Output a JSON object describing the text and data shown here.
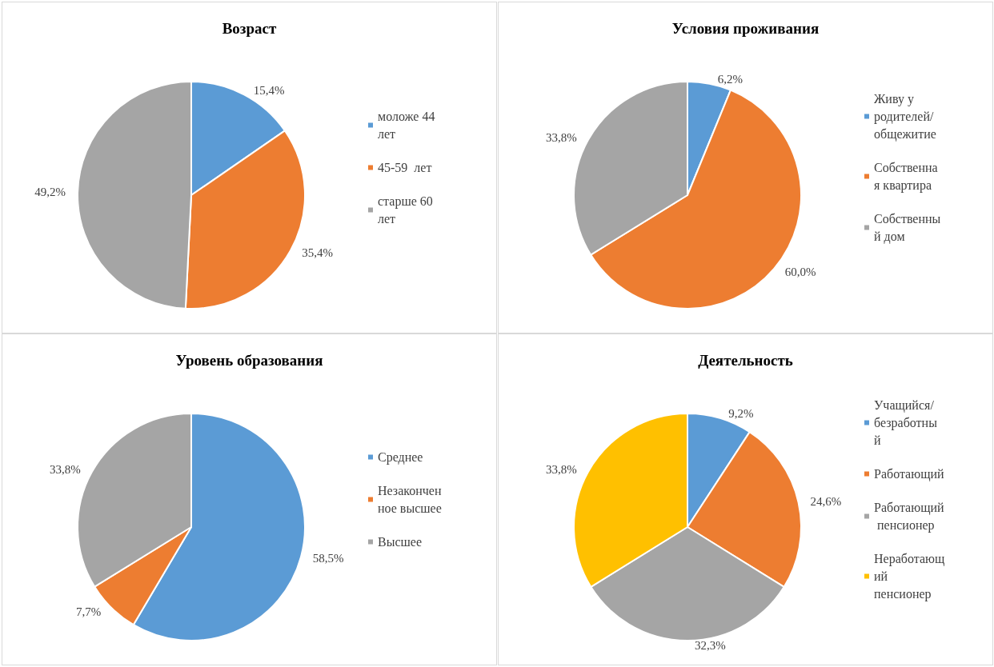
{
  "chart_data": [
    {
      "type": "pie",
      "title": "Возраст",
      "categories": [
        "моложе 44 лет",
        "45-59  лет",
        "старше 60 лет"
      ],
      "values": [
        15.4,
        35.4,
        49.2
      ],
      "colors": [
        "#5b9bd5",
        "#ed7d31",
        "#a5a5a5"
      ],
      "value_labels": [
        "15,4%",
        "35,4%",
        "49,2%"
      ],
      "legend": "right"
    },
    {
      "type": "pie",
      "title": "Условия проживания",
      "categories": [
        "Живу у родителей/общежитие",
        "Собственная квартира",
        "Собственный дом"
      ],
      "values": [
        6.2,
        60.0,
        33.8
      ],
      "colors": [
        "#5b9bd5",
        "#ed7d31",
        "#a5a5a5"
      ],
      "value_labels": [
        "6,2%",
        "60,0%",
        "33,8%"
      ],
      "legend": "right"
    },
    {
      "type": "pie",
      "title": "Уровень образования",
      "categories": [
        "Среднее",
        "Незаконченное высшее",
        "Высшее"
      ],
      "values": [
        58.5,
        7.7,
        33.8
      ],
      "colors": [
        "#5b9bd5",
        "#ed7d31",
        "#a5a5a5"
      ],
      "value_labels": [
        "58,5%",
        "7,7%",
        "33,8%"
      ],
      "legend": "right"
    },
    {
      "type": "pie",
      "title": "Деятельность",
      "categories": [
        "Учащийся/безработный",
        "Работающий",
        "Работающий пенсионер",
        "Неработающий пенсионер"
      ],
      "values": [
        9.2,
        24.6,
        32.3,
        33.8
      ],
      "colors": [
        "#5b9bd5",
        "#ed7d31",
        "#a5a5a5",
        "#ffc000"
      ],
      "value_labels": [
        "9,2%",
        "24,6%",
        "32,3%",
        "33,8%"
      ],
      "legend": "right"
    }
  ]
}
